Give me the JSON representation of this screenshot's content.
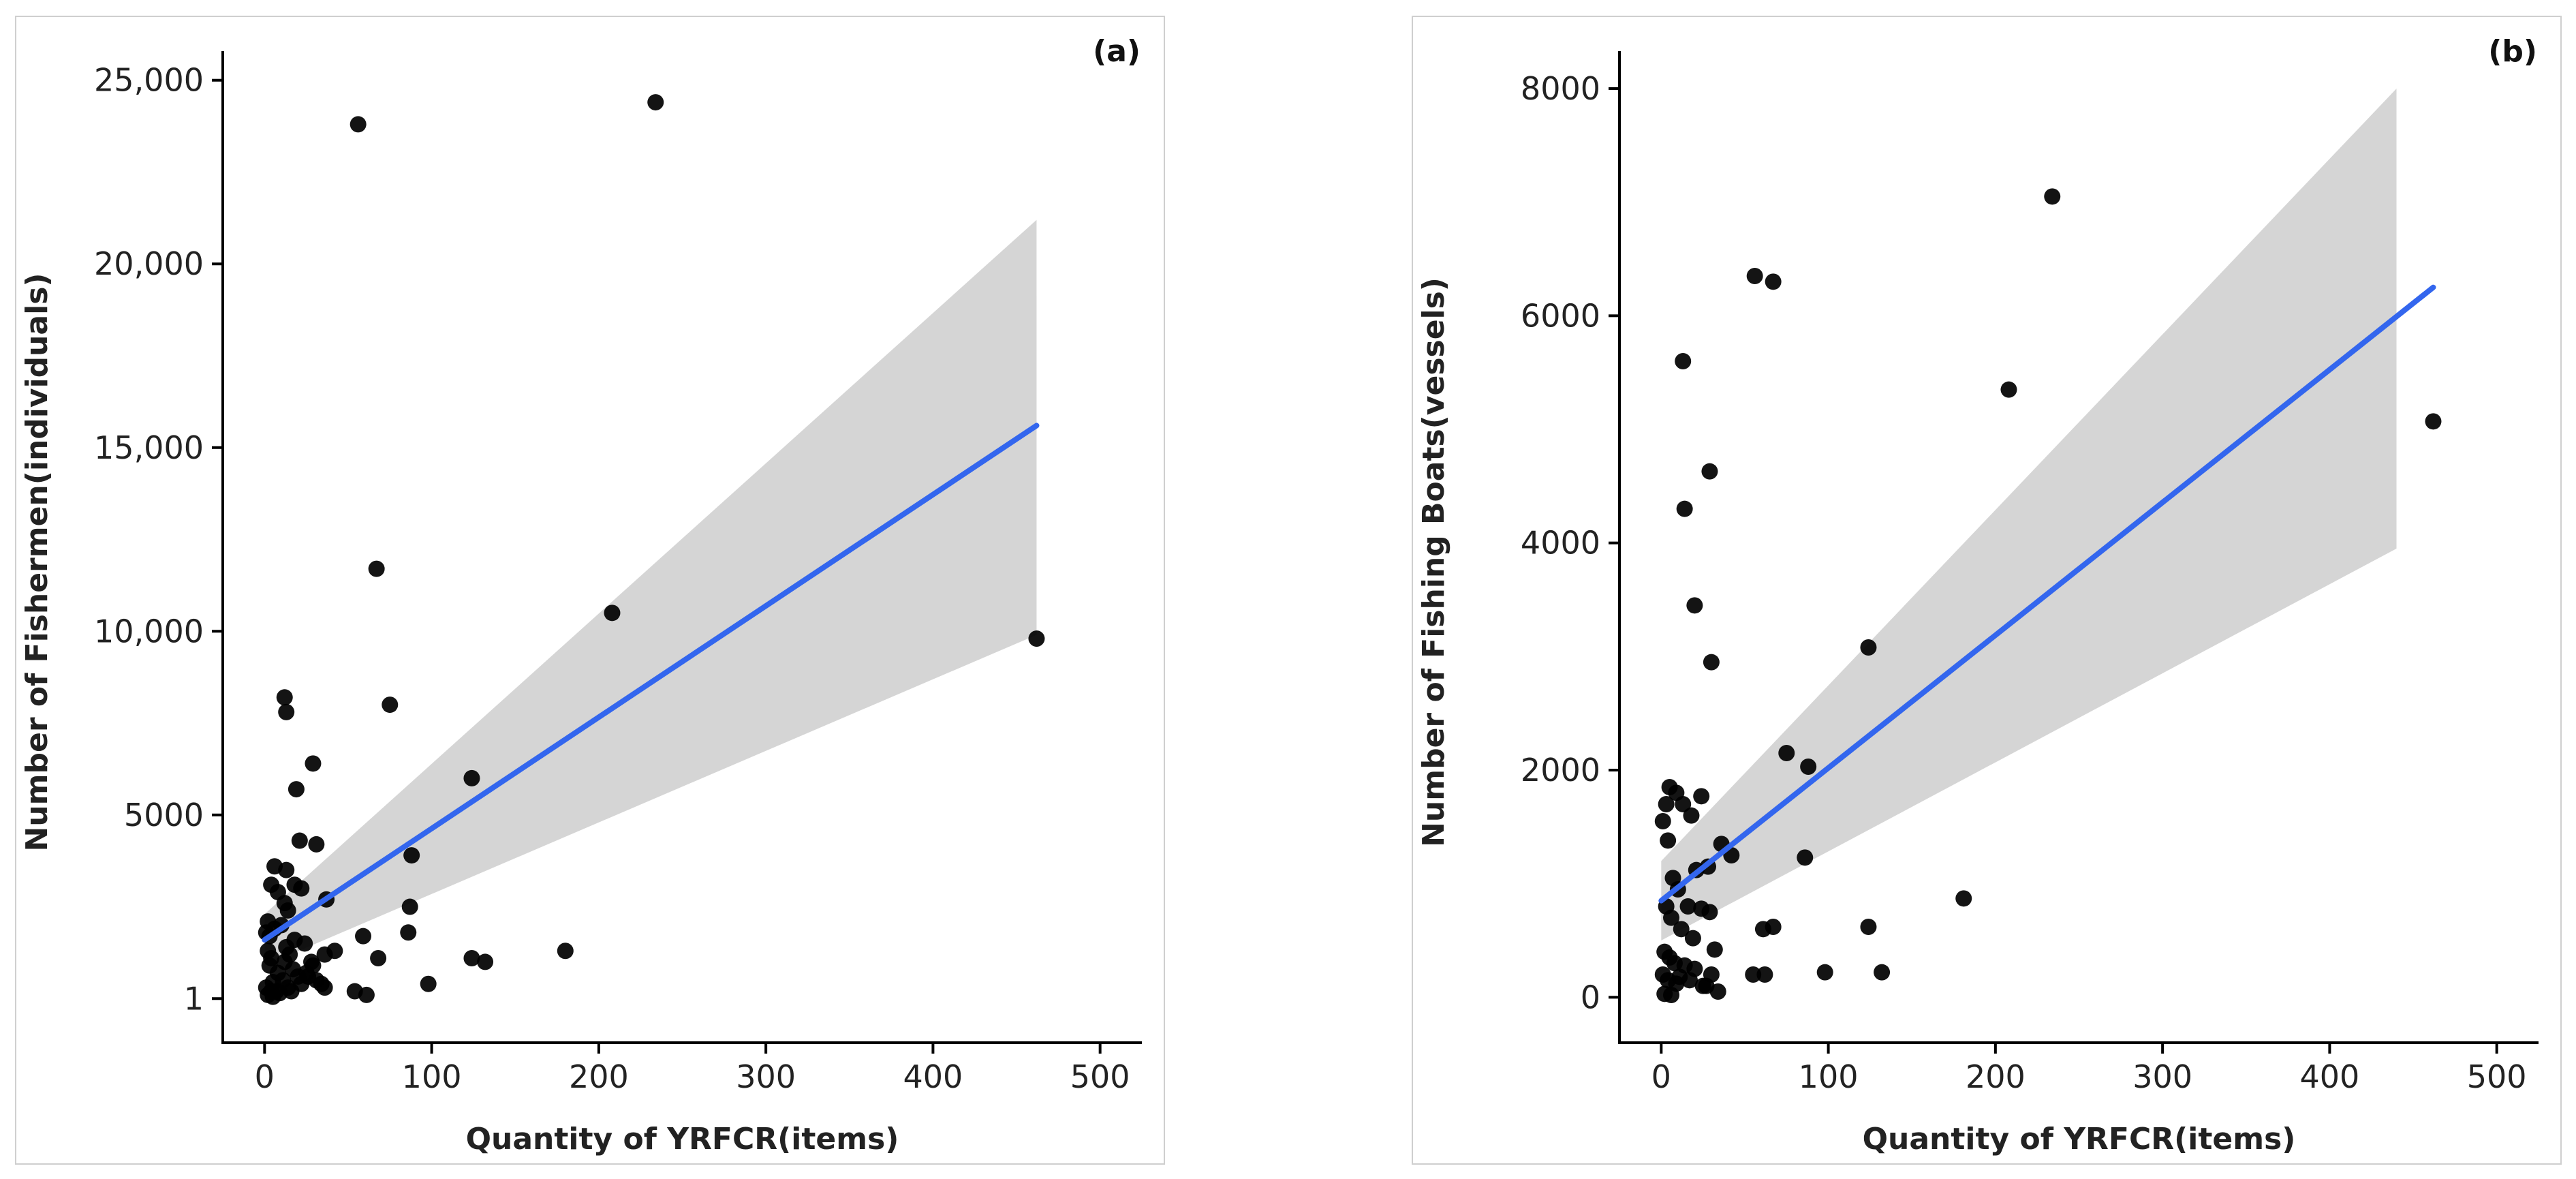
{
  "chart_data": [
    {
      "type": "scatter",
      "panel_label": "(a)",
      "xlabel": "Quantity of YRFCR(items)",
      "ylabel": "Number of Fishermen(individuals)",
      "xlim": [
        -25,
        525
      ],
      "ylim": [
        -1200,
        25700
      ],
      "x_ticks": [
        0,
        100,
        200,
        300,
        400,
        500
      ],
      "x_tick_labels": [
        "0",
        "100",
        "200",
        "300",
        "400",
        "500"
      ],
      "y_ticks": [
        1,
        5000,
        10000,
        15000,
        20000,
        25000
      ],
      "y_tick_labels": [
        "1",
        "5000",
        "10,000",
        "15,000",
        "20,000",
        "25,000"
      ],
      "regression": {
        "x": [
          0,
          462
        ],
        "y": [
          1600,
          15600
        ]
      },
      "confidence_band": {
        "x": [
          0,
          462
        ],
        "upper": [
          2300,
          21200
        ],
        "lower": [
          900,
          9900
        ]
      },
      "points": {
        "x": [
          56,
          234,
          67,
          208,
          462,
          12,
          13,
          75,
          29,
          124,
          19,
          6,
          13,
          8,
          12,
          21,
          31,
          22,
          18,
          2,
          4,
          14,
          88,
          37,
          87,
          18,
          13,
          2,
          4,
          15,
          24,
          36,
          42,
          28,
          59,
          68,
          86,
          180,
          124,
          132,
          3,
          8,
          11,
          14,
          16,
          22,
          26,
          31,
          36,
          54,
          61,
          98,
          2,
          5,
          7,
          9,
          1,
          3,
          6,
          10,
          17,
          20,
          25,
          29,
          34,
          4,
          12,
          1,
          5
        ],
        "y": [
          23800,
          24400,
          11700,
          10500,
          9800,
          8200,
          7800,
          8000,
          6400,
          6000,
          5700,
          3600,
          3500,
          2900,
          2600,
          4300,
          4200,
          3000,
          3100,
          2100,
          3100,
          2400,
          3900,
          2700,
          2500,
          1600,
          1400,
          1300,
          1100,
          1200,
          1500,
          1200,
          1300,
          1000,
          1700,
          1100,
          1800,
          1300,
          1100,
          1000,
          900,
          700,
          500,
          300,
          200,
          400,
          600,
          500,
          300,
          200,
          100,
          400,
          100,
          50,
          200,
          150,
          1800,
          1700,
          1900,
          2000,
          800,
          600,
          700,
          900,
          400,
          200,
          1000,
          300,
          450
        ]
      }
    },
    {
      "type": "scatter",
      "panel_label": "(b)",
      "xlabel": "Quantity of YRFCR(items)",
      "ylabel": "Number of Fishing Boats(vessels)",
      "xlim": [
        -25,
        525
      ],
      "ylim": [
        -400,
        8300
      ],
      "x_ticks": [
        0,
        100,
        200,
        300,
        400,
        500
      ],
      "x_tick_labels": [
        "0",
        "100",
        "200",
        "300",
        "400",
        "500"
      ],
      "y_ticks": [
        0,
        2000,
        4000,
        6000,
        8000
      ],
      "y_tick_labels": [
        "0",
        "2000",
        "4000",
        "6000",
        "8000"
      ],
      "regression": {
        "x": [
          0,
          462
        ],
        "y": [
          850,
          6250
        ]
      },
      "confidence_band": {
        "x": [
          0,
          440
        ],
        "upper": [
          1200,
          8000
        ],
        "lower": [
          500,
          3950
        ]
      },
      "points": {
        "x": [
          234,
          56,
          67,
          13,
          208,
          462,
          29,
          14,
          20,
          30,
          124,
          75,
          88,
          181,
          5,
          9,
          13,
          18,
          24,
          3,
          1,
          4,
          36,
          42,
          28,
          7,
          21,
          86,
          61,
          67,
          124,
          55,
          62,
          98,
          132,
          10,
          16,
          24,
          29,
          3,
          6,
          12,
          19,
          32,
          2,
          5,
          8,
          14,
          20,
          30,
          1,
          4,
          9,
          25,
          34,
          2,
          6,
          11,
          17,
          27
        ],
        "y": [
          7050,
          6350,
          6300,
          5600,
          5350,
          5070,
          4630,
          4300,
          3450,
          2950,
          3080,
          2150,
          2030,
          870,
          1850,
          1800,
          1700,
          1600,
          1770,
          1700,
          1550,
          1380,
          1350,
          1250,
          1150,
          1050,
          1120,
          1230,
          600,
          620,
          620,
          200,
          200,
          220,
          220,
          950,
          800,
          780,
          750,
          800,
          700,
          600,
          520,
          420,
          400,
          350,
          300,
          280,
          250,
          200,
          200,
          150,
          120,
          100,
          50,
          30,
          20,
          180,
          150,
          100
        ]
      }
    }
  ]
}
